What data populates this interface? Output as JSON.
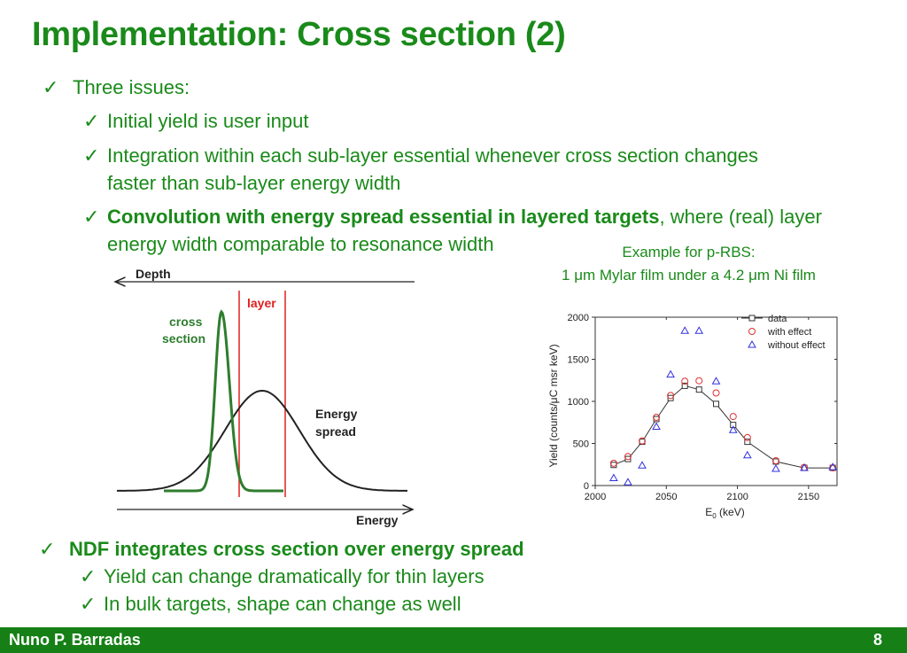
{
  "slide": {
    "title": "Implementation: Cross section (2)",
    "footer_author": "Nuno P. Barradas",
    "page_number": "8",
    "accent_color": "#1a8a1a",
    "footer_color": "#168016"
  },
  "bullets": {
    "b1": "Three issues:",
    "b1_1": "Initial yield is user input",
    "b1_2a": "Integration within each sub-layer essential whenever cross section changes",
    "b1_2b": "faster than sub-layer energy width",
    "b1_3_bold": "Convolution with energy spread essential in layered targets",
    "b1_3_rest": ", where (real) layer",
    "b1_3b": "energy width comparable to resonance width",
    "b2": "NDF integrates cross section over energy spread",
    "b2_1": "Yield can change dramatically for thin layers",
    "b2_2": "In bulk targets, shape can change as well"
  },
  "caption": {
    "line1": "Example for p-RBS:",
    "line2_a": "1 ",
    "line2_mu1": "μ",
    "line2_b": "m Mylar film under a 4.2 ",
    "line2_mu2": "μ",
    "line2_c": "m Ni film"
  },
  "diagram": {
    "depth_label": "Depth",
    "layer_label": "layer",
    "cross_section_label_1": "cross",
    "cross_section_label_2": "section",
    "energy_spread_label_1": "Energy",
    "energy_spread_label_2": "spread",
    "energy_label": "Energy",
    "layer_color": "#e02020",
    "cross_section_color": "#2e7d2e"
  },
  "chart_data": {
    "type": "scatter",
    "xlabel": "E",
    "xlabel_sub": "0",
    "xlabel_unit": " (keV)",
    "ylabel": "Yield (counts/μC msr keV)",
    "xlim": [
      2000,
      2170
    ],
    "ylim": [
      0,
      2000
    ],
    "xticks": [
      "2000",
      "2050",
      "2100",
      "2150"
    ],
    "yticks": [
      "0",
      "500",
      "1000",
      "1500",
      "2000"
    ],
    "legend_position": "top-right",
    "series": [
      {
        "name": "data",
        "marker": "square-line",
        "color": "#333333",
        "x": [
          2013,
          2023,
          2033,
          2043,
          2053,
          2063,
          2073,
          2085,
          2097,
          2107,
          2127,
          2147,
          2167
        ],
        "y": [
          245,
          315,
          520,
          790,
          1040,
          1185,
          1140,
          970,
          720,
          520,
          285,
          210,
          210
        ]
      },
      {
        "name": "with effect",
        "marker": "circle",
        "color": "#e03030",
        "x": [
          2013,
          2023,
          2033,
          2043,
          2053,
          2063,
          2073,
          2085,
          2097,
          2107,
          2127,
          2147,
          2167
        ],
        "y": [
          265,
          345,
          530,
          810,
          1070,
          1240,
          1245,
          1100,
          820,
          570,
          295,
          215,
          210
        ]
      },
      {
        "name": "without effect",
        "marker": "triangle",
        "color": "#3030e0",
        "x": [
          2013,
          2023,
          2033,
          2043,
          2053,
          2063,
          2073,
          2085,
          2097,
          2107,
          2127,
          2147,
          2167
        ],
        "y": [
          90,
          40,
          240,
          700,
          1320,
          1840,
          1840,
          1240,
          660,
          360,
          200,
          210,
          220
        ]
      }
    ]
  }
}
